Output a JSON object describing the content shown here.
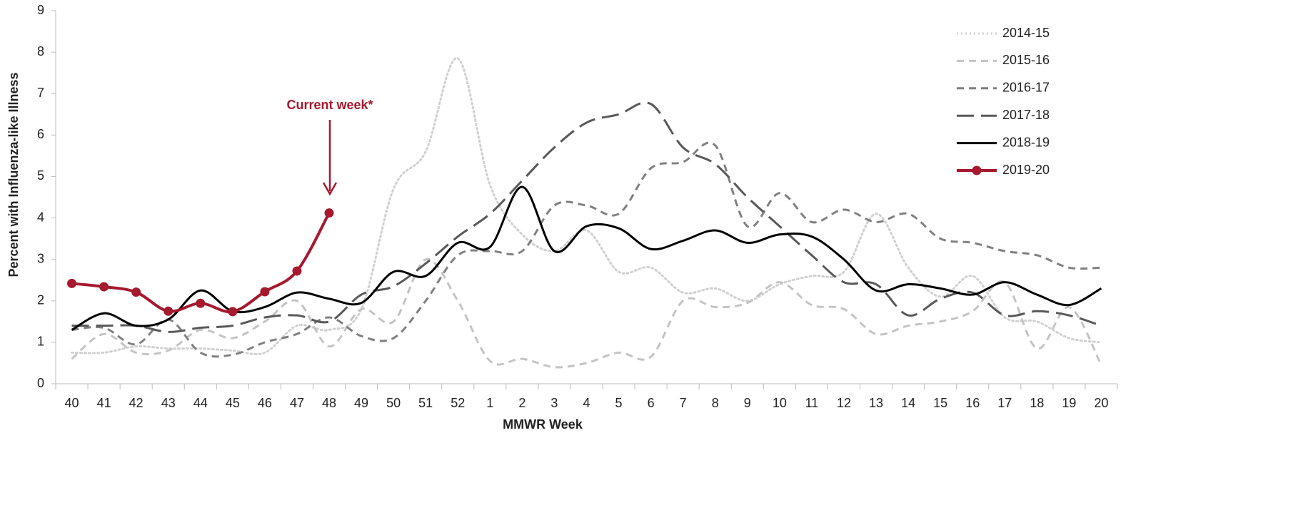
{
  "chart_data": {
    "type": "line",
    "ylabel": "Percent with Influenza-like Illness",
    "xlabel": "MMWR Week",
    "annotation": "Current week*",
    "categories": [
      40,
      41,
      42,
      43,
      44,
      45,
      46,
      47,
      48,
      49,
      50,
      51,
      52,
      1,
      2,
      3,
      4,
      5,
      6,
      7,
      8,
      9,
      10,
      11,
      12,
      13,
      14,
      15,
      16,
      17,
      18,
      19,
      20
    ],
    "ylim": [
      0,
      9
    ],
    "yticks": [
      0,
      1,
      2,
      3,
      4,
      5,
      6,
      7,
      8,
      9
    ],
    "legend": "upper right",
    "series": [
      {
        "name": "2014-15",
        "color": "#d0d0d0",
        "line_style": "dotted",
        "values": [
          0.75,
          0.75,
          0.9,
          0.85,
          0.85,
          0.8,
          0.75,
          1.4,
          1.3,
          1.8,
          4.7,
          5.6,
          7.85,
          4.8,
          3.6,
          3.2,
          3.7,
          2.7,
          2.8,
          2.2,
          2.3,
          2.0,
          2.4,
          2.6,
          2.7,
          4.1,
          2.8,
          2.1,
          2.6,
          1.6,
          1.5,
          1.1,
          1.0
        ]
      },
      {
        "name": "2015-16",
        "color": "#c4c4c4",
        "line_style": "dashed",
        "values": [
          0.6,
          1.2,
          0.75,
          0.8,
          1.3,
          1.1,
          1.5,
          2.0,
          0.9,
          1.8,
          1.5,
          3.0,
          2.0,
          0.55,
          0.6,
          0.4,
          0.5,
          0.75,
          0.65,
          2.0,
          1.85,
          1.95,
          2.45,
          1.9,
          1.8,
          1.2,
          1.4,
          1.5,
          1.75,
          2.45,
          0.85,
          1.85,
          0.45
        ]
      },
      {
        "name": "2016-17",
        "color": "#808080",
        "line_style": "dashed",
        "values": [
          1.3,
          1.35,
          0.95,
          1.55,
          0.75,
          0.7,
          1.0,
          1.2,
          1.6,
          1.15,
          1.1,
          2.0,
          3.1,
          3.2,
          3.2,
          4.3,
          4.3,
          4.1,
          5.2,
          5.35,
          5.75,
          3.8,
          4.6,
          3.9,
          4.2,
          3.9,
          4.1,
          3.5,
          3.4,
          3.2,
          3.1,
          2.8,
          2.8
        ]
      },
      {
        "name": "2017-18",
        "color": "#595959",
        "line_style": "long-dashed",
        "values": [
          1.4,
          1.4,
          1.4,
          1.25,
          1.35,
          1.4,
          1.6,
          1.65,
          1.5,
          2.15,
          2.35,
          2.9,
          3.55,
          4.1,
          4.9,
          5.7,
          6.3,
          6.5,
          6.75,
          5.7,
          5.3,
          4.5,
          3.8,
          3.1,
          2.45,
          2.4,
          1.65,
          2.05,
          2.2,
          1.65,
          1.75,
          1.65,
          1.4
        ]
      },
      {
        "name": "2018-19",
        "color": "#000000",
        "line_style": "solid",
        "values": [
          1.3,
          1.7,
          1.4,
          1.55,
          2.25,
          1.75,
          1.85,
          2.2,
          2.05,
          1.95,
          2.7,
          2.6,
          3.4,
          3.3,
          4.75,
          3.2,
          3.8,
          3.75,
          3.25,
          3.45,
          3.7,
          3.4,
          3.6,
          3.55,
          3.0,
          2.25,
          2.4,
          2.3,
          2.15,
          2.45,
          2.15,
          1.9,
          2.3
        ]
      },
      {
        "name": "2019-20",
        "color": "#a6192e",
        "line_style": "solid",
        "markers": true,
        "values": [
          2.42,
          2.34,
          2.21,
          1.75,
          1.94,
          1.74,
          2.22,
          2.72,
          4.12,
          null,
          null,
          null,
          null,
          null,
          null,
          null,
          null,
          null,
          null,
          null,
          null,
          null,
          null,
          null,
          null,
          null,
          null,
          null,
          null,
          null,
          null,
          null,
          null
        ]
      }
    ]
  }
}
